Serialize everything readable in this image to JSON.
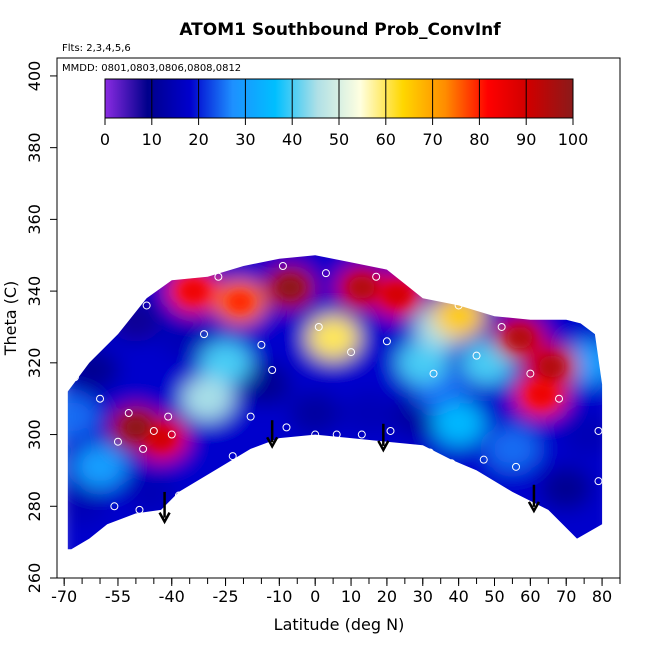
{
  "chart_data": {
    "type": "heatmap",
    "title": "ATOM1 Southbound Prob_ConvInf",
    "notes": [
      "Flts: 2,3,4,5,6",
      "MMDD: 0801,0803,0806,0808,0812"
    ],
    "xlabel": "Latitude (deg N)",
    "ylabel": "Theta (C)",
    "xlim": [
      -72,
      85
    ],
    "ylim": [
      260,
      405
    ],
    "x_ticks": [
      -70,
      -55,
      -40,
      -25,
      -10,
      0,
      10,
      20,
      30,
      40,
      50,
      60,
      70,
      80
    ],
    "x_tick_labels": [
      "-70",
      "-55",
      "-40",
      "-25",
      "-10",
      "0",
      "10",
      "20",
      "30",
      "40",
      "50",
      "60",
      "70",
      "80"
    ],
    "y_ticks": [
      260,
      280,
      300,
      320,
      340,
      360,
      380,
      400
    ],
    "y_tick_labels": [
      "260",
      "280",
      "300",
      "320",
      "340",
      "360",
      "380",
      "400"
    ],
    "colorbar": {
      "range": [
        0,
        100
      ],
      "ticks": [
        0,
        10,
        20,
        30,
        40,
        50,
        60,
        70,
        80,
        90,
        100
      ],
      "tick_labels": [
        "0",
        "10",
        "20",
        "30",
        "40",
        "50",
        "60",
        "70",
        "80",
        "90",
        "100"
      ],
      "stops": [
        "#8a2be2",
        "#00008b",
        "#0000cd",
        "#1e90ff",
        "#00bfff",
        "#b0e0e6",
        "#ffffe0",
        "#ffd700",
        "#ff8c00",
        "#ff0000",
        "#cc0000",
        "#8b1a1a"
      ]
    },
    "coverage": {
      "top": [
        [
          -69,
          312
        ],
        [
          -63,
          320
        ],
        [
          -55,
          328
        ],
        [
          -47,
          338
        ],
        [
          -40,
          343
        ],
        [
          -30,
          344
        ],
        [
          -20,
          347
        ],
        [
          -10,
          349
        ],
        [
          0,
          350
        ],
        [
          10,
          348
        ],
        [
          20,
          346
        ],
        [
          30,
          338
        ],
        [
          40,
          336
        ],
        [
          50,
          333
        ],
        [
          60,
          332
        ],
        [
          70,
          332
        ],
        [
          74,
          331
        ],
        [
          78,
          328
        ],
        [
          80,
          314
        ],
        [
          80,
          300
        ]
      ],
      "bottom": [
        [
          80,
          300
        ],
        [
          80,
          275
        ],
        [
          73,
          271
        ],
        [
          65,
          279
        ],
        [
          55,
          284
        ],
        [
          45,
          290
        ],
        [
          38,
          293
        ],
        [
          30,
          297
        ],
        [
          20,
          298
        ],
        [
          10,
          299
        ],
        [
          0,
          300
        ],
        [
          -10,
          299
        ],
        [
          -18,
          296
        ],
        [
          -28,
          290
        ],
        [
          -38,
          284
        ],
        [
          -43,
          279
        ],
        [
          -50,
          278
        ],
        [
          -58,
          275
        ],
        [
          -63,
          271
        ],
        [
          -68,
          268
        ],
        [
          -69,
          268
        ]
      ]
    },
    "hotspots": [
      {
        "lat": -50,
        "theta": 302,
        "value": 95
      },
      {
        "lat": -43,
        "theta": 299,
        "value": 85
      },
      {
        "lat": -34,
        "theta": 340,
        "value": 80
      },
      {
        "lat": -21,
        "theta": 337,
        "value": 75
      },
      {
        "lat": -7,
        "theta": 341,
        "value": 95
      },
      {
        "lat": 13,
        "theta": 341,
        "value": 90
      },
      {
        "lat": 23,
        "theta": 339,
        "value": 85
      },
      {
        "lat": 40,
        "theta": 333,
        "value": 65
      },
      {
        "lat": 57,
        "theta": 327,
        "value": 90
      },
      {
        "lat": 66,
        "theta": 319,
        "value": 90
      },
      {
        "lat": 63,
        "theta": 311,
        "value": 80
      },
      {
        "lat": 5,
        "theta": 327,
        "value": 60
      },
      {
        "lat": -36,
        "theta": 327,
        "value": 15
      },
      {
        "lat": -30,
        "theta": 310,
        "value": 45
      },
      {
        "lat": -14,
        "theta": 314,
        "value": 10
      },
      {
        "lat": 0,
        "theta": 306,
        "value": 12
      },
      {
        "lat": 15,
        "theta": 306,
        "value": 15
      },
      {
        "lat": 28,
        "theta": 305,
        "value": 12
      },
      {
        "lat": 40,
        "theta": 303,
        "value": 35
      },
      {
        "lat": 55,
        "theta": 296,
        "value": 25
      },
      {
        "lat": 70,
        "theta": 285,
        "value": 10
      },
      {
        "lat": -60,
        "theta": 291,
        "value": 30
      },
      {
        "lat": -65,
        "theta": 281,
        "value": 15
      },
      {
        "lat": -46,
        "theta": 284,
        "value": 15
      },
      {
        "lat": -62,
        "theta": 318,
        "value": 10
      },
      {
        "lat": -50,
        "theta": 332,
        "value": 8
      },
      {
        "lat": 30,
        "theta": 320,
        "value": 40
      },
      {
        "lat": 48,
        "theta": 320,
        "value": 40
      },
      {
        "lat": 76,
        "theta": 320,
        "value": 30
      },
      {
        "lat": 76,
        "theta": 300,
        "value": 15
      },
      {
        "lat": -68,
        "theta": 305,
        "value": 25
      },
      {
        "lat": -25,
        "theta": 320,
        "value": 40
      },
      {
        "lat": 35,
        "theta": 330,
        "value": 45
      },
      {
        "lat": 35,
        "theta": 312,
        "value": 25
      }
    ],
    "observations": [
      {
        "lat": -55,
        "theta": 298
      },
      {
        "lat": -52,
        "theta": 306
      },
      {
        "lat": -48,
        "theta": 296
      },
      {
        "lat": -45,
        "theta": 301
      },
      {
        "lat": -41,
        "theta": 305
      },
      {
        "lat": -56,
        "theta": 280
      },
      {
        "lat": -49,
        "theta": 279
      },
      {
        "lat": -42,
        "theta": 277
      },
      {
        "lat": -38,
        "theta": 283
      },
      {
        "lat": -30,
        "theta": 287
      },
      {
        "lat": -23,
        "theta": 294
      },
      {
        "lat": -18,
        "theta": 305
      },
      {
        "lat": -12,
        "theta": 318
      },
      {
        "lat": -8,
        "theta": 302
      },
      {
        "lat": 0,
        "theta": 300
      },
      {
        "lat": 6,
        "theta": 300
      },
      {
        "lat": 13,
        "theta": 300
      },
      {
        "lat": 21,
        "theta": 301
      },
      {
        "lat": 32,
        "theta": 295
      },
      {
        "lat": 38,
        "theta": 292
      },
      {
        "lat": 47,
        "theta": 293
      },
      {
        "lat": 56,
        "theta": 291
      },
      {
        "lat": 79,
        "theta": 287
      },
      {
        "lat": 79,
        "theta": 301
      },
      {
        "lat": -67,
        "theta": 316
      },
      {
        "lat": -47,
        "theta": 336
      },
      {
        "lat": -31,
        "theta": 328
      },
      {
        "lat": -15,
        "theta": 325
      },
      {
        "lat": 1,
        "theta": 330
      },
      {
        "lat": 10,
        "theta": 323
      },
      {
        "lat": 20,
        "theta": 326
      },
      {
        "lat": 33,
        "theta": 317
      },
      {
        "lat": 45,
        "theta": 322
      },
      {
        "lat": 52,
        "theta": 330
      },
      {
        "lat": 60,
        "theta": 317
      },
      {
        "lat": 68,
        "theta": 310
      },
      {
        "lat": -27,
        "theta": 344
      },
      {
        "lat": -9,
        "theta": 347
      },
      {
        "lat": 3,
        "theta": 345
      },
      {
        "lat": 17,
        "theta": 344
      },
      {
        "lat": 27,
        "theta": 342
      },
      {
        "lat": 40,
        "theta": 336
      },
      {
        "lat": -60,
        "theta": 310
      },
      {
        "lat": -40,
        "theta": 300
      }
    ],
    "arrows": [
      {
        "lat": -42,
        "theta_from": 284,
        "theta_to": 276
      },
      {
        "lat": -12,
        "theta_from": 304,
        "theta_to": 297
      },
      {
        "lat": 19,
        "theta_from": 303,
        "theta_to": 296
      },
      {
        "lat": 61,
        "theta_from": 286,
        "theta_to": 279
      }
    ],
    "grid": false
  }
}
